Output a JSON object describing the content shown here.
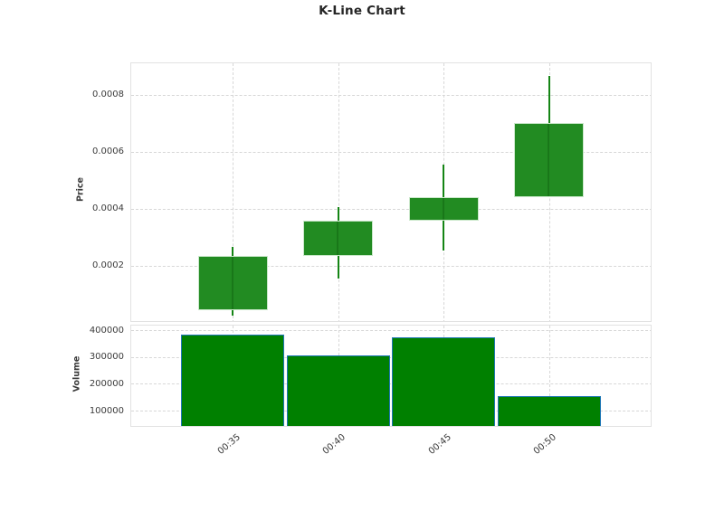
{
  "title": "K-Line Chart",
  "colors": {
    "candle_fill": "#228B22",
    "candle_edge": "#c9e7c9",
    "wick": "#158515",
    "volume_fill": "#008000",
    "volume_edge": "#1f77b4",
    "grid": "#d7d7d7",
    "pane_border": "#e2e2e2",
    "tick_text": "#3b3b3b",
    "title_text": "#252525"
  },
  "chart_data": [
    {
      "type": "candlestick",
      "title": "K-Line Chart",
      "xlabel": "",
      "ylabel": "Price",
      "x": [
        "00:35",
        "00:40",
        "00:45",
        "00:50"
      ],
      "ohlc": [
        {
          "time": "00:35",
          "open": 5e-05,
          "high": 0.00027,
          "low": 3e-05,
          "close": 0.00024
        },
        {
          "time": "00:40",
          "open": 0.00024,
          "high": 0.00041,
          "low": 0.00016,
          "close": 0.000365
        },
        {
          "time": "00:45",
          "open": 0.000365,
          "high": 0.00056,
          "low": 0.00026,
          "close": 0.000445
        },
        {
          "time": "00:50",
          "open": 0.000445,
          "high": 0.00087,
          "low": 0.000445,
          "close": 0.000705
        }
      ],
      "up_color": "#228B22",
      "yticks": [
        0.0002,
        0.0004,
        0.0006,
        0.0008
      ],
      "ytick_labels": [
        "0.0002",
        "0.0004",
        "0.0006",
        "0.0008"
      ],
      "ylim": [
        6.33e-06,
        0.00091746
      ],
      "grid": true,
      "legend": false
    },
    {
      "type": "bar",
      "ylabel": "Volume",
      "categories": [
        "00:35",
        "00:40",
        "00:45",
        "00:50"
      ],
      "values": [
        390000,
        310000,
        380000,
        160000
      ],
      "yticks": [
        100000,
        200000,
        300000,
        400000
      ],
      "ytick_labels": [
        "100000",
        "200000",
        "300000",
        "400000"
      ],
      "ylim": [
        43000,
        424500
      ],
      "grid": true,
      "legend": false
    }
  ]
}
